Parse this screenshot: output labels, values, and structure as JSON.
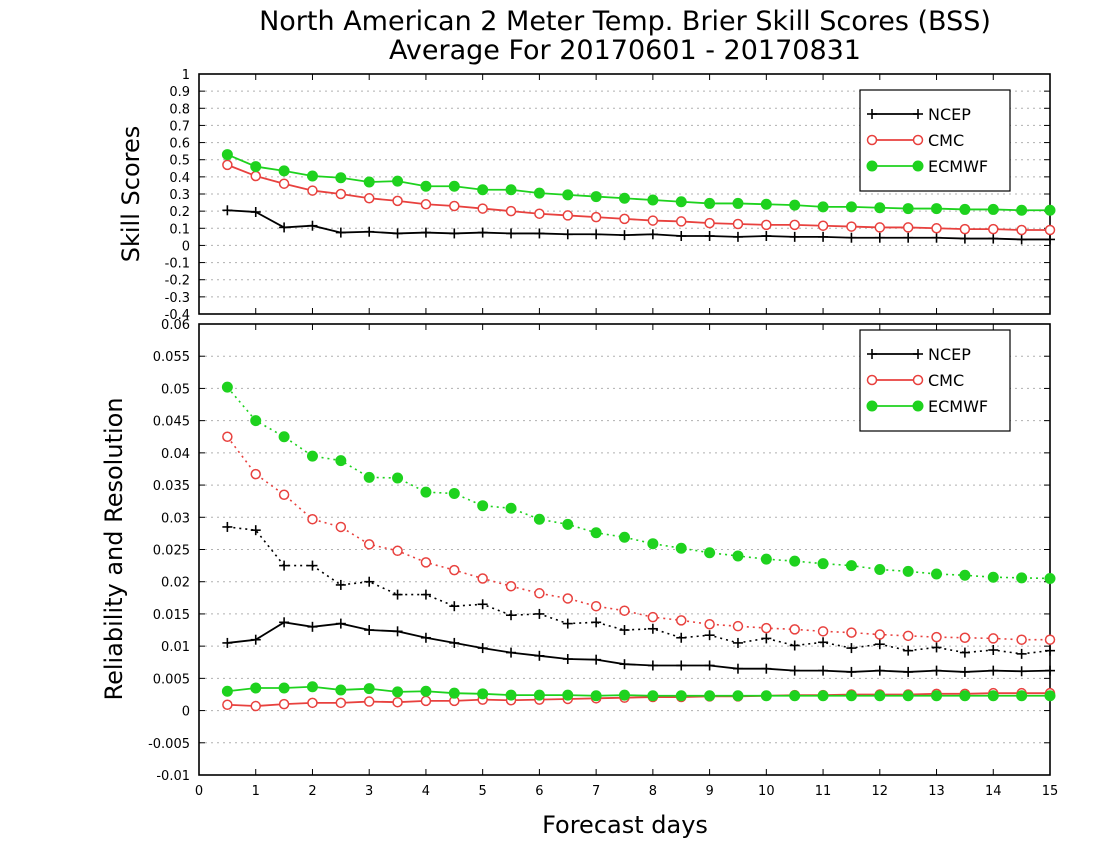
{
  "title": {
    "line1": "North American 2 Meter Temp. Brier Skill Scores (BSS)",
    "line2": "Average For 20170601 - 20170831"
  },
  "xlabel": "Forecast days",
  "colors": {
    "NCEP": "#000000",
    "CMC": "#e8413e",
    "ECMWF": "#1ed21e",
    "grid": "#b0b0b0"
  },
  "chart_data": [
    {
      "type": "line",
      "ylabel": "Skill Scores",
      "xlim": [
        0,
        15
      ],
      "ylim": [
        -0.4,
        1
      ],
      "xticks": [
        "0",
        "1",
        "2",
        "3",
        "4",
        "5",
        "6",
        "7",
        "8",
        "9",
        "10",
        "11",
        "12",
        "13",
        "14",
        "15"
      ],
      "yticks": [
        "-0.4",
        "-0.3",
        "-0.2",
        "-0.1",
        "0",
        "0.1",
        "0.2",
        "0.3",
        "0.4",
        "0.5",
        "0.6",
        "0.7",
        "0.8",
        "0.9",
        "1"
      ],
      "grid": true,
      "legend_position": "top-right",
      "x": [
        0.5,
        1,
        1.5,
        2,
        2.5,
        3,
        3.5,
        4,
        4.5,
        5,
        5.5,
        6,
        6.5,
        7,
        7.5,
        8,
        8.5,
        9,
        9.5,
        10,
        10.5,
        11,
        11.5,
        12,
        12.5,
        13,
        13.5,
        14,
        14.5,
        15
      ],
      "series": [
        {
          "name": "NCEP",
          "marker": "plus",
          "line": "solid",
          "values": [
            0.205,
            0.195,
            0.105,
            0.115,
            0.075,
            0.08,
            0.07,
            0.075,
            0.07,
            0.075,
            0.07,
            0.07,
            0.065,
            0.065,
            0.06,
            0.065,
            0.055,
            0.055,
            0.05,
            0.055,
            0.05,
            0.05,
            0.045,
            0.045,
            0.045,
            0.045,
            0.04,
            0.04,
            0.035,
            0.035
          ]
        },
        {
          "name": "CMC",
          "marker": "open-circle",
          "line": "solid",
          "values": [
            0.47,
            0.405,
            0.36,
            0.32,
            0.3,
            0.275,
            0.26,
            0.24,
            0.23,
            0.215,
            0.2,
            0.185,
            0.175,
            0.165,
            0.155,
            0.145,
            0.14,
            0.13,
            0.125,
            0.12,
            0.12,
            0.115,
            0.11,
            0.105,
            0.105,
            0.1,
            0.095,
            0.095,
            0.09,
            0.09
          ]
        },
        {
          "name": "ECMWF",
          "marker": "filled-circle",
          "line": "solid",
          "values": [
            0.53,
            0.46,
            0.435,
            0.405,
            0.395,
            0.37,
            0.375,
            0.345,
            0.345,
            0.325,
            0.325,
            0.305,
            0.295,
            0.285,
            0.275,
            0.265,
            0.255,
            0.245,
            0.245,
            0.24,
            0.235,
            0.225,
            0.225,
            0.22,
            0.215,
            0.215,
            0.21,
            0.21,
            0.205,
            0.205
          ]
        }
      ]
    },
    {
      "type": "line",
      "ylabel": "Reliability and Resolution",
      "xlim": [
        0,
        15
      ],
      "ylim": [
        -0.01,
        0.06
      ],
      "xticks": [
        "0",
        "1",
        "2",
        "3",
        "4",
        "5",
        "6",
        "7",
        "8",
        "9",
        "10",
        "11",
        "12",
        "13",
        "14",
        "15"
      ],
      "yticks": [
        "-0.01",
        "-0.005",
        "0",
        "0.005",
        "0.01",
        "0.015",
        "0.02",
        "0.025",
        "0.03",
        "0.035",
        "0.04",
        "0.045",
        "0.05",
        "0.055",
        "0.06"
      ],
      "grid": true,
      "legend_position": "top-right",
      "x": [
        0.5,
        1,
        1.5,
        2,
        2.5,
        3,
        3.5,
        4,
        4.5,
        5,
        5.5,
        6,
        6.5,
        7,
        7.5,
        8,
        8.5,
        9,
        9.5,
        10,
        10.5,
        11,
        11.5,
        12,
        12.5,
        13,
        13.5,
        14,
        14.5,
        15
      ],
      "series": [
        {
          "name": "NCEP",
          "marker": "plus",
          "line": "dotted",
          "values": [
            0.0285,
            0.028,
            0.0225,
            0.0225,
            0.0195,
            0.02,
            0.018,
            0.018,
            0.0162,
            0.0165,
            0.0148,
            0.015,
            0.0135,
            0.0137,
            0.0125,
            0.0127,
            0.0113,
            0.0117,
            0.0105,
            0.0112,
            0.0101,
            0.0106,
            0.0097,
            0.0103,
            0.0093,
            0.0098,
            0.009,
            0.0094,
            0.0088,
            0.0093
          ]
        },
        {
          "name": "CMC",
          "marker": "open-circle",
          "line": "dotted",
          "values": [
            0.0425,
            0.0367,
            0.0335,
            0.0297,
            0.0285,
            0.0258,
            0.0248,
            0.023,
            0.0218,
            0.0205,
            0.0193,
            0.0182,
            0.0174,
            0.0162,
            0.0155,
            0.0145,
            0.014,
            0.0134,
            0.0131,
            0.0128,
            0.0126,
            0.0123,
            0.0121,
            0.0118,
            0.0116,
            0.0114,
            0.0113,
            0.0112,
            0.011,
            0.011
          ]
        },
        {
          "name": "ECMWF",
          "marker": "filled-circle",
          "line": "dotted",
          "values": [
            0.0502,
            0.045,
            0.0425,
            0.0395,
            0.0388,
            0.0362,
            0.0361,
            0.0339,
            0.0337,
            0.0318,
            0.0314,
            0.0297,
            0.0289,
            0.0276,
            0.0269,
            0.0259,
            0.0252,
            0.0245,
            0.024,
            0.0235,
            0.0232,
            0.0228,
            0.0225,
            0.0219,
            0.0216,
            0.0212,
            0.021,
            0.0207,
            0.0206,
            0.0205
          ]
        },
        {
          "name": "NCEP",
          "marker": "plus",
          "line": "solid",
          "values": [
            0.0105,
            0.011,
            0.0137,
            0.013,
            0.0135,
            0.0125,
            0.0123,
            0.0113,
            0.0105,
            0.0097,
            0.009,
            0.0085,
            0.008,
            0.0079,
            0.0072,
            0.007,
            0.007,
            0.007,
            0.0065,
            0.0065,
            0.0062,
            0.0062,
            0.006,
            0.0062,
            0.006,
            0.0062,
            0.006,
            0.0062,
            0.0061,
            0.0062
          ]
        },
        {
          "name": "CMC",
          "marker": "open-circle",
          "line": "solid",
          "values": [
            0.0009,
            0.0007,
            0.001,
            0.0012,
            0.0012,
            0.0014,
            0.0013,
            0.0015,
            0.0015,
            0.0017,
            0.0016,
            0.0017,
            0.0018,
            0.0019,
            0.002,
            0.0021,
            0.0021,
            0.0022,
            0.0022,
            0.0023,
            0.0024,
            0.0024,
            0.0025,
            0.0025,
            0.0025,
            0.0026,
            0.0026,
            0.0027,
            0.0027,
            0.0027
          ]
        },
        {
          "name": "ECMWF",
          "marker": "filled-circle",
          "line": "solid",
          "values": [
            0.003,
            0.0035,
            0.0035,
            0.0037,
            0.0032,
            0.0034,
            0.0029,
            0.003,
            0.0027,
            0.0026,
            0.0024,
            0.0024,
            0.0024,
            0.0023,
            0.0024,
            0.0023,
            0.0023,
            0.0023,
            0.0023,
            0.0023,
            0.0023,
            0.0023,
            0.0023,
            0.0023,
            0.0023,
            0.0023,
            0.0023,
            0.0023,
            0.0023,
            0.0023
          ]
        }
      ]
    }
  ]
}
